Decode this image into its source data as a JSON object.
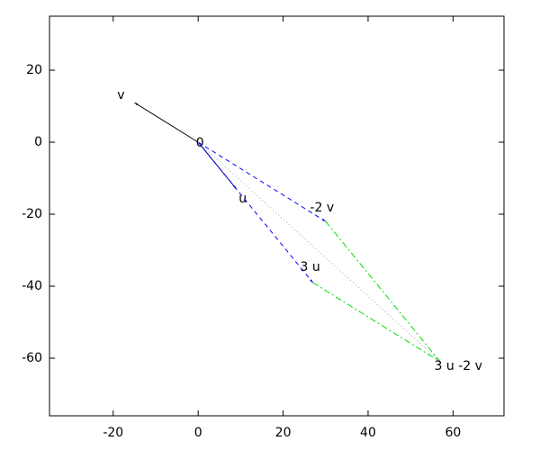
{
  "chart_data": {
    "type": "vector",
    "xlim": [
      -35,
      72
    ],
    "ylim": [
      -76,
      35
    ],
    "xticks": [
      -20,
      0,
      20,
      40,
      60
    ],
    "yticks": [
      -60,
      -40,
      -20,
      0,
      20
    ],
    "origin_label": "0",
    "vectors": [
      {
        "label": "v",
        "from": [
          0,
          0
        ],
        "to": [
          -15,
          11
        ],
        "color": "#000000",
        "style": "solid"
      },
      {
        "label": "u",
        "from": [
          0,
          0
        ],
        "to": [
          9,
          -13
        ],
        "color": "#000080",
        "style": "solid"
      },
      {
        "label": "-2 v",
        "from": [
          0,
          0
        ],
        "to": [
          30,
          -22
        ],
        "color": "#0000ff",
        "style": "dashed"
      },
      {
        "label": "3 u",
        "from": [
          0,
          0
        ],
        "to": [
          27,
          -39
        ],
        "color": "#0000ff",
        "style": "dashed"
      },
      {
        "from": [
          30,
          -22
        ],
        "to": [
          57,
          -61
        ],
        "color": "#00dd00",
        "style": "dashdot"
      },
      {
        "from": [
          27,
          -39
        ],
        "to": [
          57,
          -61
        ],
        "color": "#00dd00",
        "style": "dashdot"
      },
      {
        "label": "3 u -2 v",
        "from": [
          0,
          0
        ],
        "to": [
          57,
          -61
        ],
        "color": "#a0a0a0",
        "style": "dotted"
      }
    ]
  }
}
